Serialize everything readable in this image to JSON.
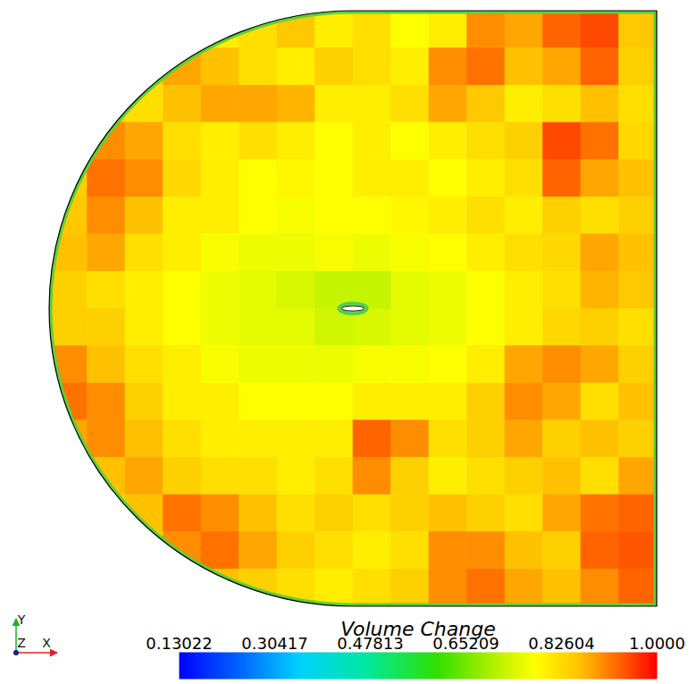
{
  "chart_data": {
    "type": "heatmap",
    "tick_labels": false,
    "xlim": [
      -1,
      1
    ],
    "ylim": [
      -1,
      1
    ],
    "colorbar": {
      "label": "Volume Change",
      "lim": [
        0.13022,
        1
      ],
      "ticks": [
        0.13022,
        0.30417,
        0.47813,
        0.65209,
        0.82604,
        {
          "value": 1,
          "label": "1.0000"
        }
      ]
    },
    "axis_triad": {
      "x": "X",
      "y": "Y",
      "z": "Z"
    },
    "cells": [
      [
        null,
        null,
        null,
        null,
        0.8,
        0.82,
        0.85,
        0.8,
        0.82,
        0.78,
        0.8,
        0.9,
        0.88,
        0.93,
        0.95,
        0.85
      ],
      [
        null,
        null,
        0.85,
        0.88,
        0.86,
        0.82,
        0.8,
        0.84,
        0.82,
        0.8,
        0.9,
        0.92,
        0.86,
        0.88,
        0.93,
        0.84
      ],
      [
        null,
        0.84,
        0.82,
        0.86,
        0.88,
        0.88,
        0.87,
        0.8,
        0.8,
        0.82,
        0.88,
        0.85,
        0.8,
        0.82,
        0.86,
        0.82
      ],
      [
        null,
        0.9,
        0.88,
        0.82,
        0.8,
        0.82,
        0.8,
        0.78,
        0.8,
        0.78,
        0.8,
        0.82,
        0.84,
        0.95,
        0.92,
        0.83
      ],
      [
        0.84,
        0.92,
        0.9,
        0.83,
        0.8,
        0.78,
        0.79,
        0.78,
        0.8,
        0.8,
        0.78,
        0.8,
        0.82,
        0.93,
        0.88,
        0.86
      ],
      [
        0.85,
        0.9,
        0.86,
        0.8,
        0.8,
        0.78,
        0.77,
        0.78,
        0.78,
        0.79,
        0.8,
        0.82,
        0.8,
        0.84,
        0.82,
        0.84
      ],
      [
        0.86,
        0.88,
        0.82,
        0.8,
        0.77,
        0.76,
        0.76,
        0.77,
        0.76,
        0.77,
        0.78,
        0.8,
        0.82,
        0.83,
        0.88,
        0.86
      ],
      [
        0.84,
        0.82,
        0.8,
        0.78,
        0.76,
        0.75,
        0.74,
        0.72,
        0.72,
        0.75,
        0.76,
        0.78,
        0.8,
        0.82,
        0.87,
        0.85
      ],
      [
        0.84,
        0.84,
        0.8,
        0.78,
        0.76,
        0.75,
        0.75,
        0.73,
        0.74,
        0.75,
        0.76,
        0.78,
        0.8,
        0.83,
        0.84,
        0.82
      ],
      [
        0.9,
        0.86,
        0.82,
        0.8,
        0.77,
        0.76,
        0.76,
        0.76,
        0.77,
        0.77,
        0.78,
        0.8,
        0.88,
        0.9,
        0.88,
        0.84
      ],
      [
        0.92,
        0.9,
        0.84,
        0.8,
        0.8,
        0.78,
        0.78,
        0.78,
        0.8,
        0.8,
        0.8,
        0.84,
        0.9,
        0.88,
        0.82,
        0.86
      ],
      [
        0.88,
        0.9,
        0.86,
        0.82,
        0.8,
        0.8,
        0.8,
        0.8,
        0.93,
        0.9,
        0.82,
        0.84,
        0.88,
        0.84,
        0.86,
        0.84
      ],
      [
        null,
        0.86,
        0.88,
        0.84,
        0.82,
        0.82,
        0.8,
        0.82,
        0.9,
        0.84,
        0.8,
        0.82,
        0.84,
        0.86,
        0.82,
        0.88
      ],
      [
        null,
        0.84,
        0.86,
        0.92,
        0.9,
        0.86,
        0.82,
        0.84,
        0.82,
        0.84,
        0.86,
        0.84,
        0.82,
        0.88,
        0.92,
        0.93
      ],
      [
        null,
        null,
        0.84,
        0.9,
        0.92,
        0.88,
        0.84,
        0.82,
        0.8,
        0.82,
        0.9,
        0.9,
        0.86,
        0.84,
        0.93,
        0.94
      ],
      [
        null,
        null,
        null,
        null,
        0.86,
        0.84,
        0.82,
        0.8,
        0.82,
        0.84,
        0.9,
        0.92,
        0.88,
        0.86,
        0.9,
        0.93
      ]
    ]
  }
}
